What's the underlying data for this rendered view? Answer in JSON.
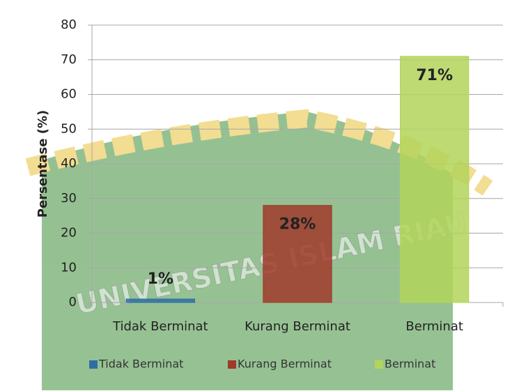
{
  "chart_data": {
    "type": "bar",
    "y_label": "Persentase (%)",
    "categories": [
      "Tidak Berminat",
      "Kurang Berminat",
      "Berminat"
    ],
    "values": [
      1,
      28,
      71
    ],
    "value_labels": [
      "1%",
      "28%",
      "71%"
    ],
    "colors": [
      "#2f6ea5",
      "#a0392a",
      "#b3d45a"
    ],
    "ylim": [
      0,
      80
    ],
    "yticks": [
      0,
      10,
      20,
      30,
      40,
      50,
      60,
      70,
      80
    ],
    "grid": true,
    "legend": "bottom",
    "watermark": "UNIVERSITAS ISLAM RIAU"
  }
}
